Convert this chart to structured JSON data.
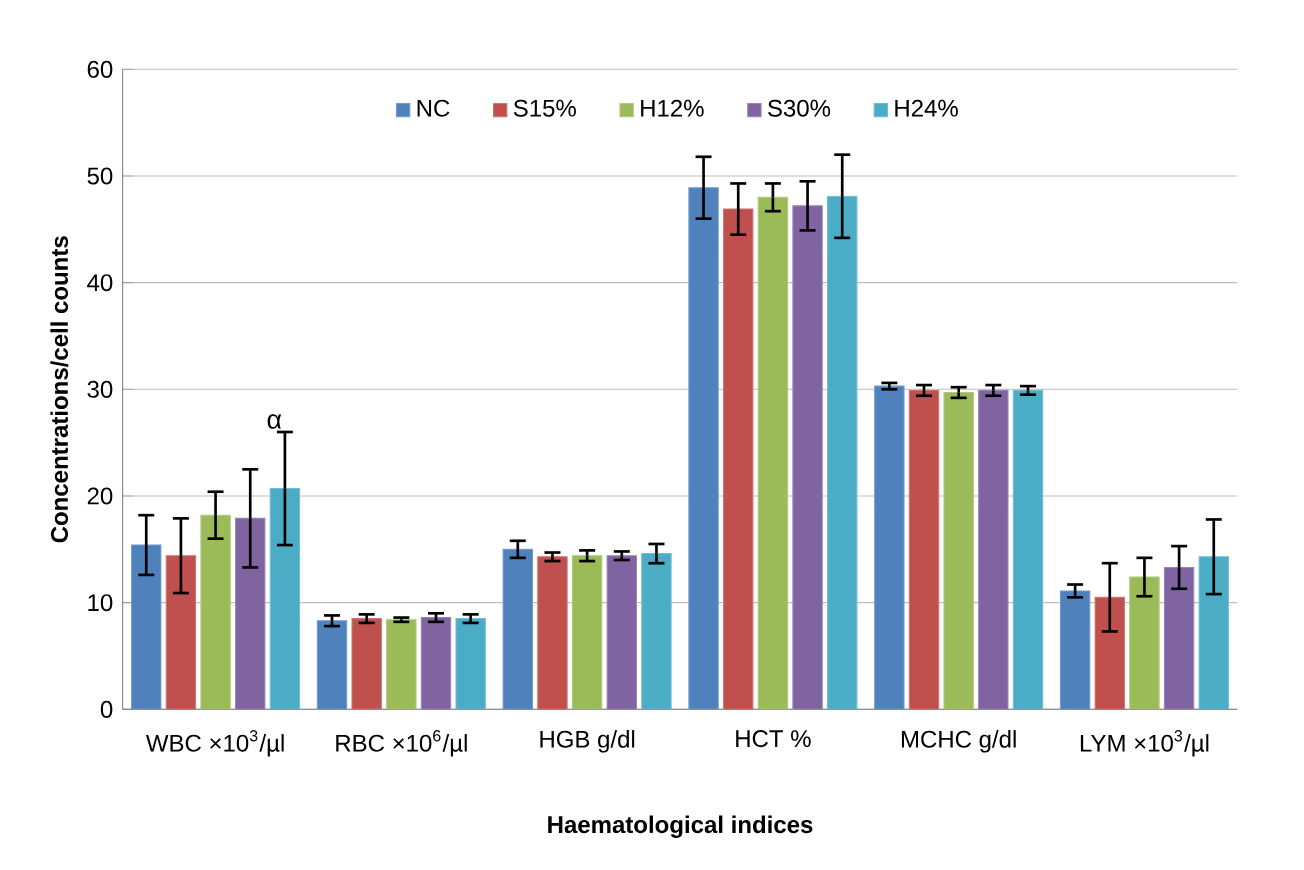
{
  "chart_data": {
    "type": "bar",
    "xlabel": "Haematological indices",
    "ylabel": "Concentrations/cell counts",
    "categories": [
      "WBC ×10$^{3}$/µl",
      "RBC ×10$^{6}$/µl",
      "HGB g/dl",
      "HCT %",
      "MCHC g/dl",
      "LYM ×10$^{3}$/µl"
    ],
    "series": [
      {
        "name": "NC",
        "color": "#4f81bd",
        "values": [
          15.4,
          8.3,
          15.0,
          48.9,
          30.3,
          11.1
        ],
        "errors": [
          2.8,
          0.5,
          0.8,
          2.9,
          0.3,
          0.6
        ]
      },
      {
        "name": "S15%",
        "color": "#c0504d",
        "values": [
          14.4,
          8.5,
          14.3,
          46.9,
          29.9,
          10.5
        ],
        "errors": [
          3.5,
          0.4,
          0.4,
          2.4,
          0.5,
          3.2
        ]
      },
      {
        "name": "H12%",
        "color": "#9bbb59",
        "values": [
          18.2,
          8.4,
          14.4,
          48.0,
          29.7,
          12.4
        ],
        "errors": [
          2.2,
          0.2,
          0.5,
          1.3,
          0.5,
          1.8
        ]
      },
      {
        "name": "S30%",
        "color": "#8064a2",
        "values": [
          17.9,
          8.6,
          14.4,
          47.2,
          29.9,
          13.3
        ],
        "errors": [
          4.6,
          0.4,
          0.4,
          2.3,
          0.5,
          2.0
        ]
      },
      {
        "name": "H24%",
        "color": "#4bacc6",
        "values": [
          20.7,
          8.5,
          14.6,
          48.1,
          29.9,
          14.3
        ],
        "errors": [
          5.3,
          0.4,
          0.9,
          3.9,
          0.4,
          3.5
        ]
      }
    ],
    "annotations": [
      "α"
    ],
    "ylim": [
      0,
      60
    ],
    "yticks": [
      0,
      10,
      20,
      30,
      40,
      50,
      60
    ],
    "grid": "y",
    "legend": "top"
  }
}
